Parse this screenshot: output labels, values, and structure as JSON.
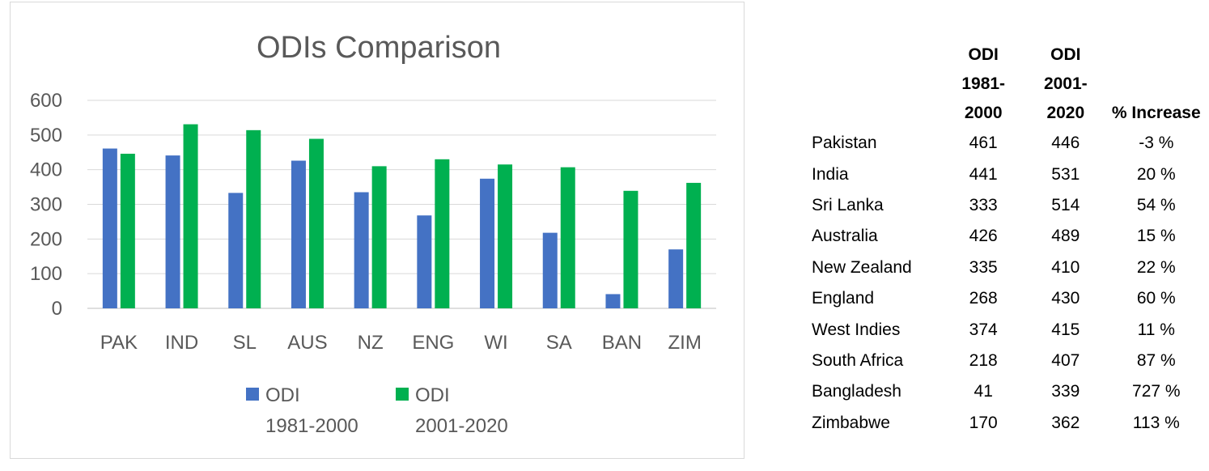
{
  "chart_data": {
    "type": "bar",
    "title": "ODIs Comparison",
    "categories": [
      "PAK",
      "IND",
      "SL",
      "AUS",
      "NZ",
      "ENG",
      "WI",
      "SA",
      "BAN",
      "ZIM"
    ],
    "series": [
      {
        "name": "ODI 1981-2000",
        "legend_lines": [
          "ODI",
          "1981-2000"
        ],
        "color": "#4472c4",
        "values": [
          461,
          441,
          333,
          426,
          335,
          268,
          374,
          218,
          41,
          170
        ]
      },
      {
        "name": "ODI 2001-2020",
        "legend_lines": [
          "ODI",
          "2001-2020"
        ],
        "color": "#00b050",
        "values": [
          446,
          531,
          514,
          489,
          410,
          430,
          415,
          407,
          339,
          362
        ]
      }
    ],
    "yticks": [
      0,
      100,
      200,
      300,
      400,
      500,
      600
    ],
    "ylim": [
      0,
      600
    ],
    "grid": true,
    "legend": "bottom"
  },
  "table": {
    "headers": [
      [
        ""
      ],
      [
        "ODI",
        "1981-",
        "2000"
      ],
      [
        "ODI",
        "2001-",
        "2020"
      ],
      [
        "% Increase"
      ]
    ],
    "rows": [
      [
        "Pakistan",
        "461",
        "446",
        "-3 %"
      ],
      [
        "India",
        "441",
        "531",
        "20 %"
      ],
      [
        "Sri Lanka",
        "333",
        "514",
        "54 %"
      ],
      [
        "Australia",
        "426",
        "489",
        "15 %"
      ],
      [
        "New Zealand",
        "335",
        "410",
        "22 %"
      ],
      [
        "England",
        "268",
        "430",
        "60 %"
      ],
      [
        "West Indies",
        "374",
        "415",
        "11 %"
      ],
      [
        "South Africa",
        "218",
        "407",
        "87 %"
      ],
      [
        "Bangladesh",
        "41",
        "339",
        "727 %"
      ],
      [
        "Zimbabwe",
        "170",
        "362",
        "113 %"
      ]
    ]
  }
}
